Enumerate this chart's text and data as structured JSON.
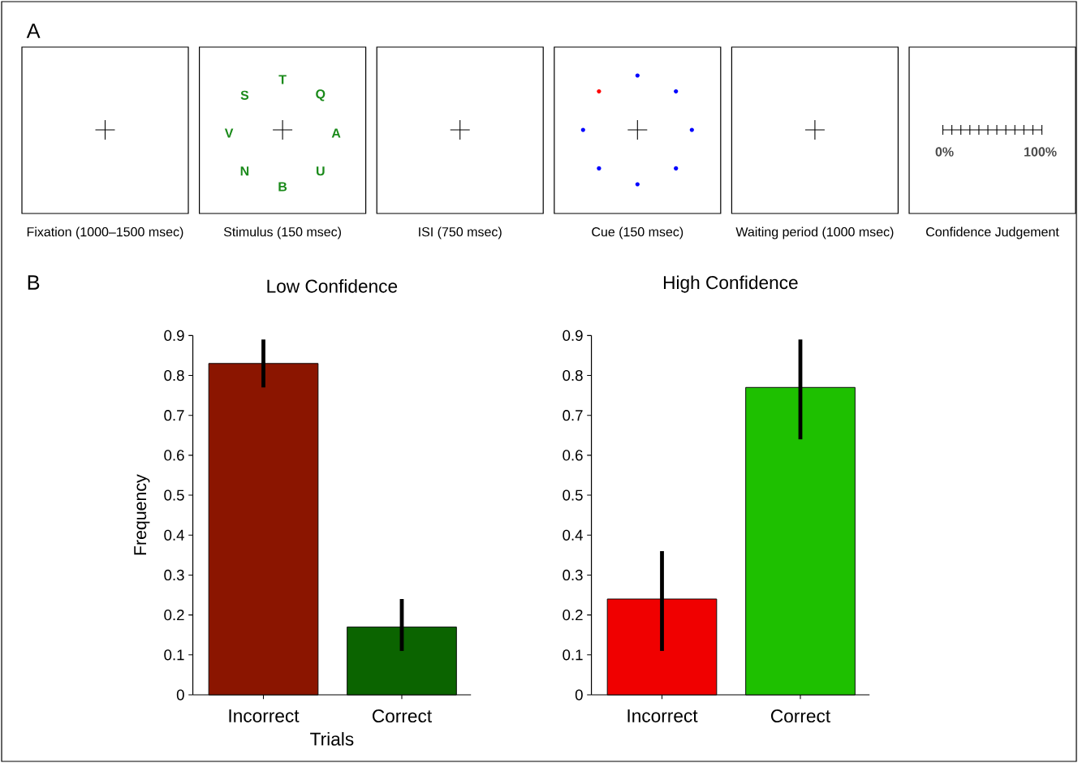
{
  "chart_data": [
    {
      "type": "other",
      "title": "A",
      "categories": [
        "Fixation (1000–1500 msec)",
        "Stimulus (150 msec)",
        "ISI (750 msec)",
        "Cue (150 msec)",
        "Waiting period (1000 msec)",
        "Confidence Judgement"
      ],
      "annotations": [
        "T",
        "Q",
        "A",
        "U",
        "B",
        "N",
        "V",
        "S",
        "0%",
        "100%"
      ]
    },
    {
      "type": "bar",
      "title": "Low Confidence",
      "categories": [
        "Incorrect",
        "Correct"
      ],
      "values": [
        0.83,
        0.17
      ],
      "colors": [
        "#8b1500",
        "#0b6400"
      ],
      "errors": [
        [
          0.77,
          0.89
        ],
        [
          0.11,
          0.24
        ]
      ],
      "ylim": [
        0,
        0.9
      ],
      "yticks": [
        0,
        0.1,
        0.2,
        0.3,
        0.4,
        0.5,
        0.6,
        0.7,
        0.8,
        0.9
      ],
      "ylabel": "Frequency",
      "xlabel": "Trials",
      "annotations": [
        "B"
      ]
    },
    {
      "type": "bar",
      "title": "High Confidence",
      "categories": [
        "Incorrect",
        "Correct"
      ],
      "values": [
        0.24,
        0.77
      ],
      "colors": [
        "#f00000",
        "#1ec000"
      ],
      "errors": [
        [
          0.11,
          0.36
        ],
        [
          0.64,
          0.89
        ]
      ],
      "ylim": [
        0,
        0.9
      ],
      "yticks": [
        0,
        0.1,
        0.2,
        0.3,
        0.4,
        0.5,
        0.6,
        0.7,
        0.8,
        0.9
      ]
    }
  ]
}
